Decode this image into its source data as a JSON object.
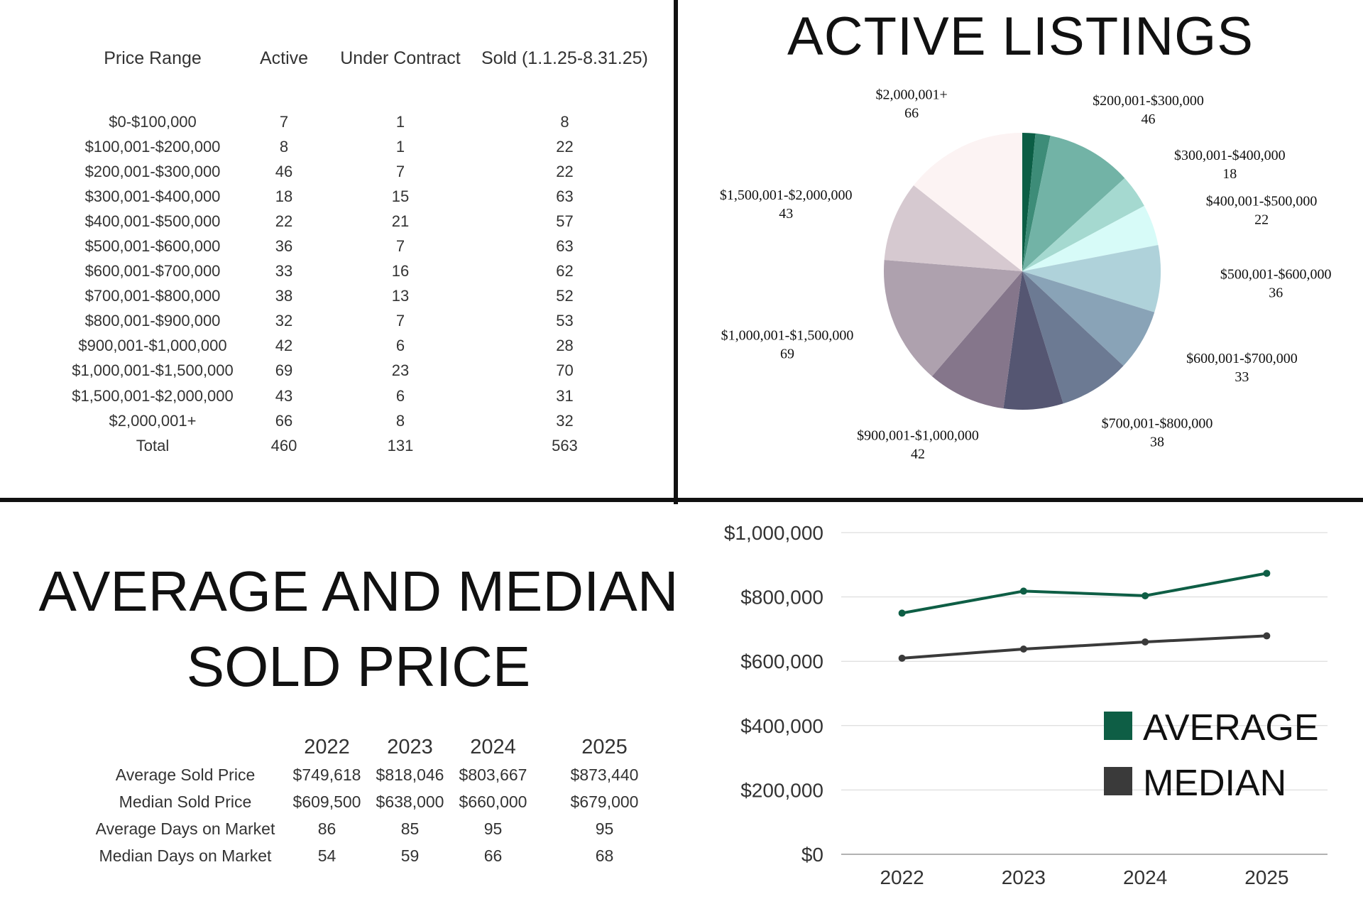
{
  "listings_table": {
    "headers": [
      "Price Range",
      "Active",
      "Under Contract",
      "Sold (1.1.25-8.31.25)"
    ],
    "rows": [
      [
        "$0-$100,000",
        "7",
        "1",
        "8"
      ],
      [
        "$100,001-$200,000",
        "8",
        "1",
        "22"
      ],
      [
        "$200,001-$300,000",
        "46",
        "7",
        "22"
      ],
      [
        "$300,001-$400,000",
        "18",
        "15",
        "63"
      ],
      [
        "$400,001-$500,000",
        "22",
        "21",
        "57"
      ],
      [
        "$500,001-$600,000",
        "36",
        "7",
        "63"
      ],
      [
        "$600,001-$700,000",
        "33",
        "16",
        "62"
      ],
      [
        "$700,001-$800,000",
        "38",
        "13",
        "52"
      ],
      [
        "$800,001-$900,000",
        "32",
        "7",
        "53"
      ],
      [
        "$900,001-$1,000,000",
        "42",
        "6",
        "28"
      ],
      [
        "$1,000,001-$1,500,000",
        "69",
        "23",
        "70"
      ],
      [
        "$1,500,001-$2,000,000",
        "43",
        "6",
        "31"
      ],
      [
        "$2,000,001+",
        "66",
        "8",
        "32"
      ],
      [
        "Total",
        "460",
        "131",
        "563"
      ]
    ]
  },
  "stats_table": {
    "years": [
      "2022",
      "2023",
      "2024",
      "2025"
    ],
    "rows": [
      [
        "Average Sold Price",
        "$749,618",
        "$818,046",
        "$803,667",
        "$873,440"
      ],
      [
        "Median Sold Price",
        "$609,500",
        "$638,000",
        "$660,000",
        "$679,000"
      ],
      [
        "Average Days on Market",
        "86",
        "85",
        "95",
        "95"
      ],
      [
        "Median Days on Market",
        "54",
        "59",
        "66",
        "68"
      ]
    ]
  },
  "chart_data": [
    {
      "type": "pie",
      "title": "ACTIVE LISTINGS",
      "slices": [
        {
          "label": "$0-$100,000",
          "value": 7,
          "color": "#0b5e45",
          "show_label": false
        },
        {
          "label": "$100,001-$200,000",
          "value": 8,
          "color": "#3d8c78",
          "show_label": false
        },
        {
          "label": "$200,001-$300,000",
          "value": 46,
          "color": "#72b3a6",
          "show_label": true
        },
        {
          "label": "$300,001-$400,000",
          "value": 18,
          "color": "#a5d9d0",
          "show_label": true
        },
        {
          "label": "$400,001-$500,000",
          "value": 22,
          "color": "#d7fbf8",
          "show_label": true
        },
        {
          "label": "$500,001-$600,000",
          "value": 36,
          "color": "#afd2da",
          "show_label": true
        },
        {
          "label": "$600,001-$700,000",
          "value": 33,
          "color": "#89a3b7",
          "show_label": true
        },
        {
          "label": "$700,001-$800,000",
          "value": 38,
          "color": "#6c7a93",
          "show_label": true
        },
        {
          "label": "$800,001-$900,000",
          "value": 32,
          "color": "#555672",
          "show_label": false
        },
        {
          "label": "$900,001-$1,000,000",
          "value": 42,
          "color": "#85768b",
          "show_label": true
        },
        {
          "label": "$1,000,001-$1,500,000",
          "value": 69,
          "color": "#aea1ae",
          "show_label": true
        },
        {
          "label": "$1,500,001-$2,000,000",
          "value": 43,
          "color": "#d6c9d0",
          "show_label": true
        },
        {
          "label": "$2,000,001+",
          "value": 66,
          "color": "#fcf3f3",
          "show_label": true
        }
      ]
    },
    {
      "type": "line",
      "title": "AVERAGE AND MEDIAN SOLD PRICE",
      "x": [
        "2022",
        "2023",
        "2024",
        "2025"
      ],
      "ylim": [
        0,
        1000000
      ],
      "yticks": [
        "$0",
        "$200,000",
        "$400,000",
        "$600,000",
        "$800,000",
        "$1,000,000"
      ],
      "ytick_values": [
        0,
        200000,
        400000,
        600000,
        800000,
        1000000
      ],
      "grid": true,
      "legend_placement": "bottom-right",
      "series": [
        {
          "name": "AVERAGE",
          "values": [
            749618,
            818046,
            803667,
            873440
          ],
          "color": "#0e5e45"
        },
        {
          "name": "MEDIAN",
          "values": [
            609500,
            638000,
            660000,
            679000
          ],
          "color": "#3a3a3a"
        }
      ]
    }
  ]
}
